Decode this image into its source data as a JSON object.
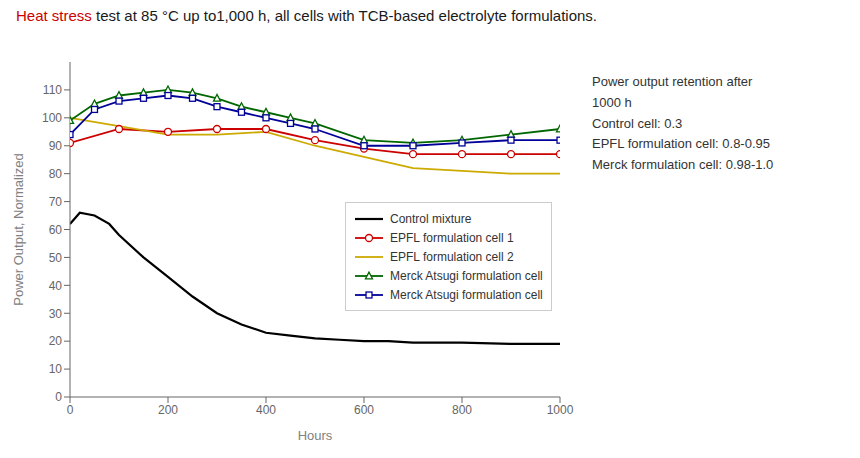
{
  "chart_data": {
    "type": "line",
    "title": [
      {
        "text": "Heat stress",
        "color": "#cc0000"
      },
      {
        "text": " test at 85 °C up to1,000 h, all cells with TCB-based electrolyte formulations.",
        "color": "#1a1a1a"
      }
    ],
    "x_label": "Hours",
    "y_label": "Power Output, Normalized",
    "xlim": [
      0,
      1000
    ],
    "ylim": [
      0,
      120
    ],
    "xticks": [
      0,
      200,
      400,
      600,
      800,
      1000
    ],
    "yticks": [
      0,
      10,
      20,
      30,
      40,
      50,
      60,
      70,
      80,
      90,
      100,
      110
    ],
    "grid": false,
    "legend": "lower right",
    "series": [
      {
        "name": "Control mixture",
        "color": "#000000",
        "x": [
          0,
          20,
          50,
          80,
          100,
          150,
          200,
          250,
          300,
          350,
          400,
          450,
          500,
          550,
          600,
          650,
          700,
          800,
          900,
          1000
        ],
        "values": [
          62,
          66,
          65,
          62,
          58,
          50,
          43,
          36,
          30,
          26,
          23,
          22,
          21,
          20.5,
          20,
          20,
          19.5,
          19.5,
          19,
          19
        ]
      },
      {
        "name": "EPFL formulation cell 1",
        "color": "#cc0000",
        "marker": "circle",
        "x": [
          0,
          100,
          200,
          300,
          400,
          500,
          600,
          700,
          800,
          900,
          1000
        ],
        "values": [
          91,
          96,
          95,
          96,
          96,
          92,
          89,
          87,
          87,
          87,
          87
        ]
      },
      {
        "name": "EPFL formulation cell 2",
        "color": "#ccaa00",
        "x": [
          0,
          100,
          200,
          300,
          400,
          500,
          600,
          700,
          800,
          900,
          1000
        ],
        "values": [
          100,
          97,
          94,
          94,
          95,
          90,
          86,
          82,
          81,
          80,
          80
        ]
      },
      {
        "name": "Merck Atsugi formulation cell",
        "color": "#006600",
        "marker": "triangle",
        "x": [
          0,
          50,
          100,
          150,
          200,
          250,
          300,
          350,
          400,
          450,
          500,
          600,
          700,
          800,
          900,
          1000
        ],
        "values": [
          99,
          105,
          108,
          109,
          110,
          109,
          107,
          104,
          102,
          100,
          98,
          92,
          91,
          92,
          94,
          96
        ]
      },
      {
        "name": "Merck Atsugi formulation cell",
        "color": "#000099",
        "marker": "square",
        "x": [
          0,
          50,
          100,
          150,
          200,
          250,
          300,
          350,
          400,
          450,
          500,
          600,
          700,
          800,
          900,
          1000
        ],
        "values": [
          94,
          103,
          106,
          107,
          108,
          107,
          104,
          102,
          100,
          98,
          96,
          90,
          90,
          91,
          92,
          92
        ]
      }
    ],
    "annotations": [
      "Power output retention after",
      "1000 h",
      "Control cell: 0.3",
      "EPFL formulation cell: 0.8-0.95",
      "Merck formulation cell: 0.98-1.0"
    ]
  }
}
